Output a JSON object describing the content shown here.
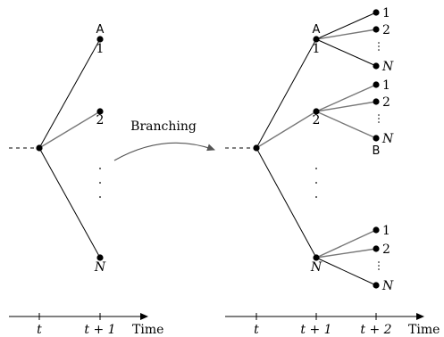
{
  "left_tree": {
    "top_marker": "A",
    "child_labels": [
      "1",
      "2",
      "N"
    ]
  },
  "branching_label": "Branching",
  "right_tree": {
    "top_marker": "A",
    "lower_marker": "B",
    "child_labels": [
      "1",
      "2",
      "N"
    ],
    "grandchild_labels": [
      "1",
      "2",
      "N"
    ]
  },
  "left_axis": {
    "ticks": [
      "t",
      "t + 1"
    ],
    "label": "Time"
  },
  "right_axis": {
    "ticks": [
      "t",
      "t + 1",
      "t + 2"
    ],
    "label": "Time"
  }
}
